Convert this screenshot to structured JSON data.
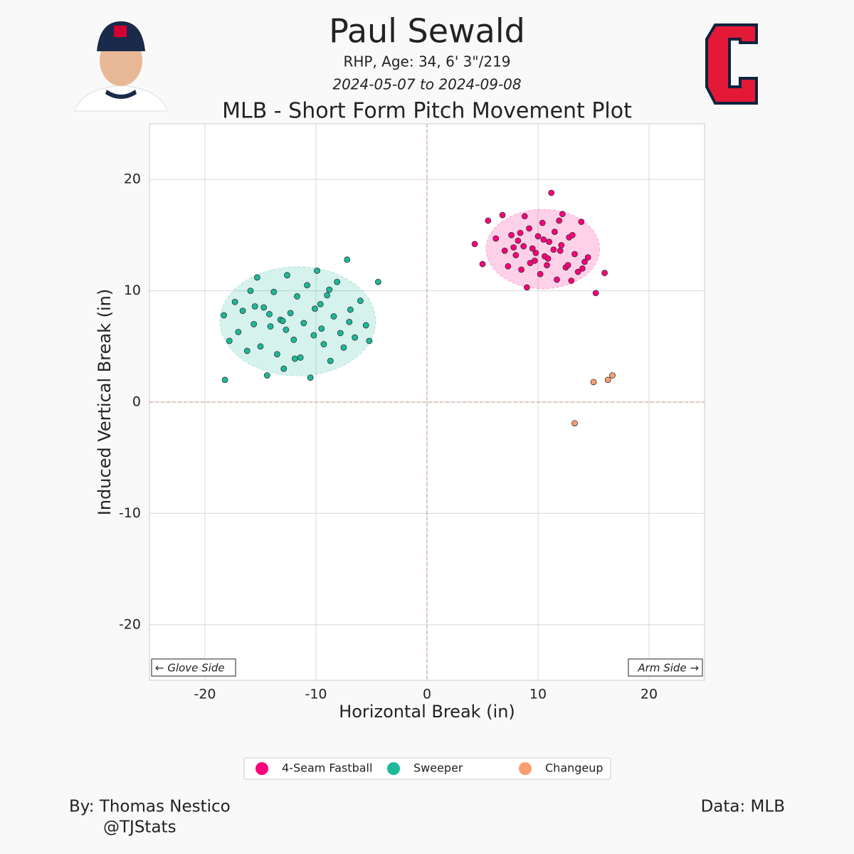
{
  "chart_data": {
    "type": "scatter",
    "title": "Paul Sewald",
    "subtitle": "RHP, Age: 34, 6' 3\"/219",
    "date_range": "2024-05-07 to 2024-09-08",
    "plot_title": "MLB - Short Form Pitch Movement Plot",
    "x_label": "Horizontal Break (in)",
    "y_label": "Induced Vertical Break (in)",
    "annotations": [
      "← Glove Side",
      "Arm Side →"
    ],
    "credit": [
      "By: Thomas Nestico",
      "@TJStats"
    ],
    "source": "Data: MLB",
    "xlim": [
      -25,
      25
    ],
    "ylim": [
      -25,
      25
    ],
    "xticks": [
      -20,
      -10,
      0,
      10,
      20
    ],
    "yticks": [
      -20,
      -10,
      0,
      10,
      20
    ],
    "grid": true,
    "series": [
      {
        "name": "4-Seam Fastball",
        "color": "#FF007D",
        "x": [
          4.3,
          5.0,
          5.5,
          6.2,
          6.8,
          7.0,
          7.3,
          7.6,
          8.0,
          8.2,
          8.5,
          8.8,
          9.0,
          9.2,
          9.5,
          9.7,
          10.0,
          10.2,
          10.4,
          10.6,
          10.8,
          11.0,
          11.2,
          11.5,
          11.7,
          12.0,
          12.2,
          12.5,
          12.8,
          13.0,
          13.3,
          13.6,
          13.9,
          14.2,
          14.5,
          15.2,
          16.0,
          8.7,
          9.8,
          10.9,
          12.1,
          13.1,
          7.8,
          9.3,
          11.4,
          12.7,
          10.5,
          11.9,
          8.4,
          14.0
        ],
        "values": [
          14.2,
          12.4,
          16.3,
          14.7,
          16.8,
          13.6,
          12.2,
          15.0,
          13.2,
          14.5,
          11.9,
          16.7,
          10.3,
          15.6,
          13.8,
          12.7,
          14.9,
          11.5,
          16.1,
          13.1,
          12.3,
          14.4,
          18.8,
          15.3,
          11.0,
          13.6,
          16.9,
          12.1,
          14.8,
          10.9,
          13.3,
          11.7,
          16.2,
          12.6,
          13.0,
          9.8,
          11.6,
          14.0,
          13.4,
          12.9,
          14.1,
          15.0,
          13.9,
          12.5,
          13.7,
          12.3,
          14.6,
          16.3,
          15.2,
          12.0
        ]
      },
      {
        "name": "Sweeper",
        "color": "#1BB999",
        "x": [
          -18.3,
          -18.2,
          -17.8,
          -17.3,
          -17.0,
          -16.6,
          -16.2,
          -15.9,
          -15.6,
          -15.3,
          -15.0,
          -14.7,
          -14.4,
          -14.1,
          -13.8,
          -13.5,
          -13.2,
          -12.9,
          -12.6,
          -12.3,
          -12.0,
          -11.7,
          -11.4,
          -11.1,
          -10.8,
          -10.5,
          -10.2,
          -9.9,
          -9.6,
          -9.3,
          -9.0,
          -8.7,
          -8.4,
          -8.1,
          -7.8,
          -7.5,
          -7.2,
          -6.9,
          -6.5,
          -6.0,
          -5.5,
          -5.2,
          -4.4,
          -10.1,
          -12.7,
          -14.2,
          -8.8,
          -11.9,
          -13.0,
          -9.5,
          -15.5,
          -7.0
        ],
        "values": [
          7.8,
          2.0,
          5.5,
          9.0,
          6.3,
          8.2,
          4.6,
          10.0,
          7.0,
          11.2,
          5.0,
          8.5,
          2.4,
          6.8,
          9.9,
          4.3,
          7.4,
          3.0,
          11.4,
          8.0,
          5.6,
          9.5,
          4.0,
          7.1,
          10.5,
          2.2,
          6.0,
          11.8,
          8.8,
          5.2,
          9.6,
          3.7,
          7.7,
          10.8,
          6.2,
          4.9,
          12.8,
          8.3,
          5.8,
          9.1,
          6.9,
          5.5,
          10.8,
          8.4,
          6.5,
          7.9,
          10.1,
          3.9,
          7.3,
          6.6,
          8.6,
          7.2
        ]
      },
      {
        "name": "Changeup",
        "color": "#F79E70",
        "x": [
          13.3,
          15.0,
          16.3,
          16.7
        ],
        "values": [
          -1.9,
          1.8,
          2.0,
          2.4
        ]
      }
    ]
  }
}
